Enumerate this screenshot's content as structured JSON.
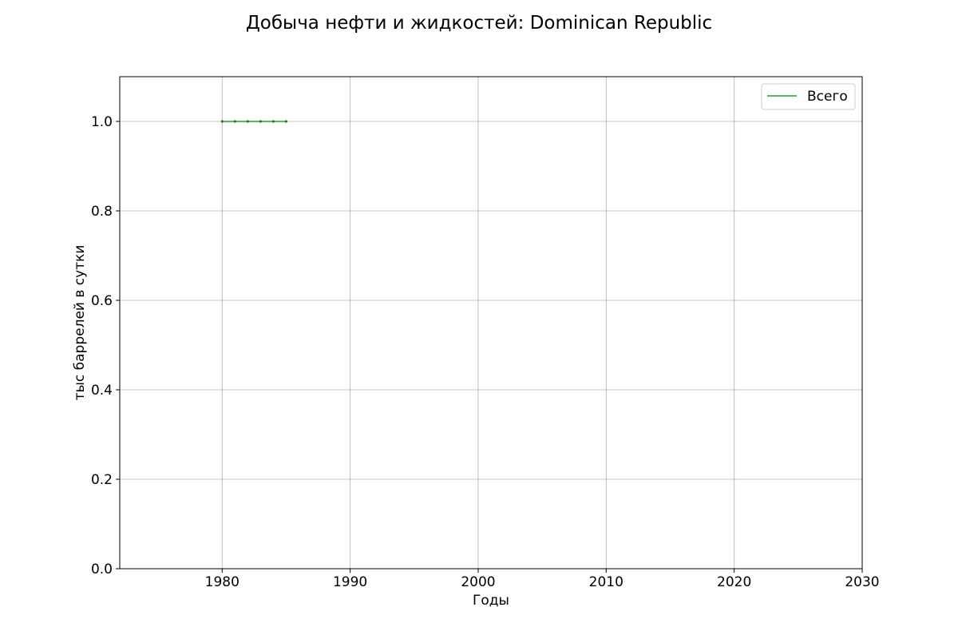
{
  "chart_data": {
    "type": "line",
    "title": "Добыча нефти и жидкостей: Dominican Republic",
    "xlabel": "Годы",
    "ylabel": "тыс баррелей в сутки",
    "xlim": [
      1972,
      2030
    ],
    "ylim": [
      0,
      1.1
    ],
    "xticks": [
      1980,
      1990,
      2000,
      2010,
      2020,
      2030
    ],
    "xtick_labels": [
      "1980",
      "1990",
      "2000",
      "2010",
      "2020",
      "2030"
    ],
    "yticks": [
      0.0,
      0.2,
      0.4,
      0.6,
      0.8,
      1.0
    ],
    "ytick_labels": [
      "0.0",
      "0.2",
      "0.4",
      "0.6",
      "0.8",
      "1.0"
    ],
    "grid": true,
    "legend_position": "top-right",
    "series": [
      {
        "name": "Всего",
        "color": "#5cb85c",
        "x": [
          1980,
          1981,
          1982,
          1983,
          1984,
          1985
        ],
        "y": [
          1,
          1,
          1,
          1,
          1,
          1
        ]
      }
    ]
  }
}
